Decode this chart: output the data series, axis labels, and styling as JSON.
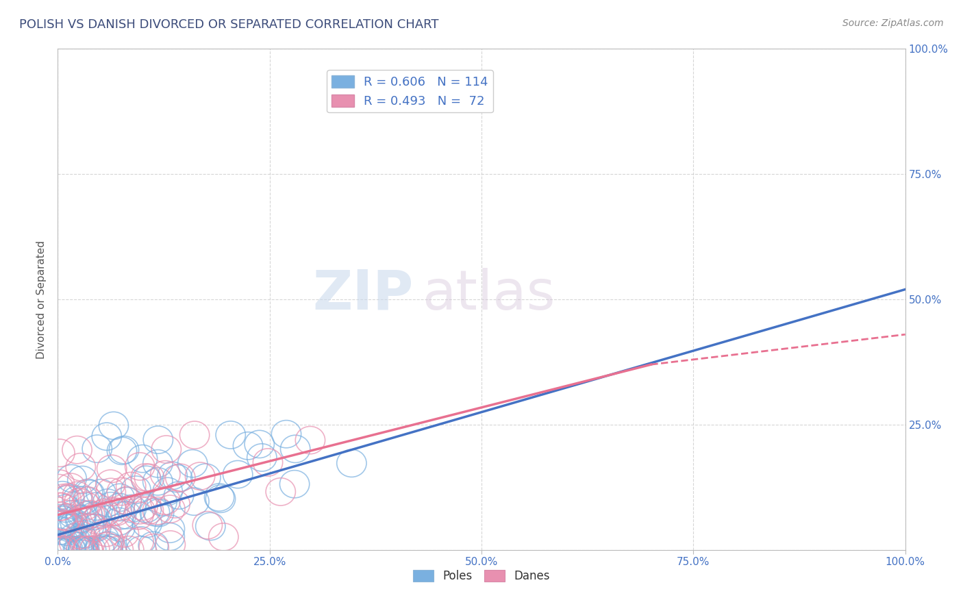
{
  "title": "POLISH VS DANISH DIVORCED OR SEPARATED CORRELATION CHART",
  "source": "Source: ZipAtlas.com",
  "ylabel": "Divorced or Separated",
  "legend_top": [
    {
      "label": "R = 0.606   N = 114",
      "color": "#a8c4e8"
    },
    {
      "label": "R = 0.493   N =  72",
      "color": "#f0a8c0"
    }
  ],
  "legend_bottom": [
    {
      "label": "Poles",
      "color": "#a8c4e8"
    },
    {
      "label": "Danes",
      "color": "#f0a8c0"
    }
  ],
  "watermark_zip": "ZIP",
  "watermark_atlas": "atlas",
  "title_color": "#3c4c7a",
  "scatter_blue": "#7ab0e0",
  "scatter_pink": "#e890b0",
  "line_blue": "#4472c4",
  "line_pink": "#e87090",
  "grid_color": "#cccccc",
  "background_color": "#ffffff",
  "xlim": [
    0,
    100
  ],
  "ylim": [
    0,
    100
  ]
}
